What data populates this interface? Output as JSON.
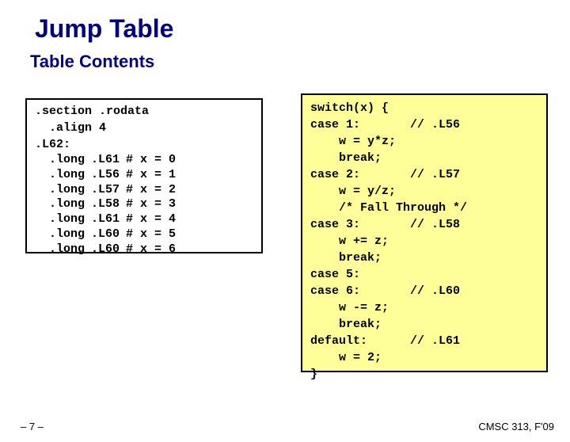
{
  "title": "Jump Table",
  "subtitle": "Table Contents",
  "asm": {
    "header1": ".section .rodata",
    "header2": "  .align 4",
    "label": ".L62:",
    "rows": [
      {
        "dir": "  .long",
        "lbl": ".L61",
        "cmt": "# x = 0"
      },
      {
        "dir": "  .long",
        "lbl": ".L56",
        "cmt": "# x = 1"
      },
      {
        "dir": "  .long",
        "lbl": ".L57",
        "cmt": "# x = 2"
      },
      {
        "dir": "  .long",
        "lbl": ".L58",
        "cmt": "# x = 3"
      },
      {
        "dir": "  .long",
        "lbl": ".L61",
        "cmt": "# x = 4"
      },
      {
        "dir": "  .long",
        "lbl": ".L60",
        "cmt": "# x = 5"
      },
      {
        "dir": "  .long",
        "lbl": ".L60",
        "cmt": "# x = 6"
      }
    ]
  },
  "c_lines": [
    "switch(x) {",
    "case 1:       // .L56",
    "    w = y*z;",
    "    break;",
    "case 2:       // .L57",
    "    w = y/z;",
    "    /* Fall Through */",
    "case 3:       // .L58",
    "    w += z;",
    "    break;",
    "case 5:",
    "case 6:       // .L60",
    "    w -= z;",
    "    break;",
    "default:      // .L61",
    "    w = 2;",
    "}"
  ],
  "page_num": "– 7 –",
  "footer": "CMSC 313, F'09"
}
